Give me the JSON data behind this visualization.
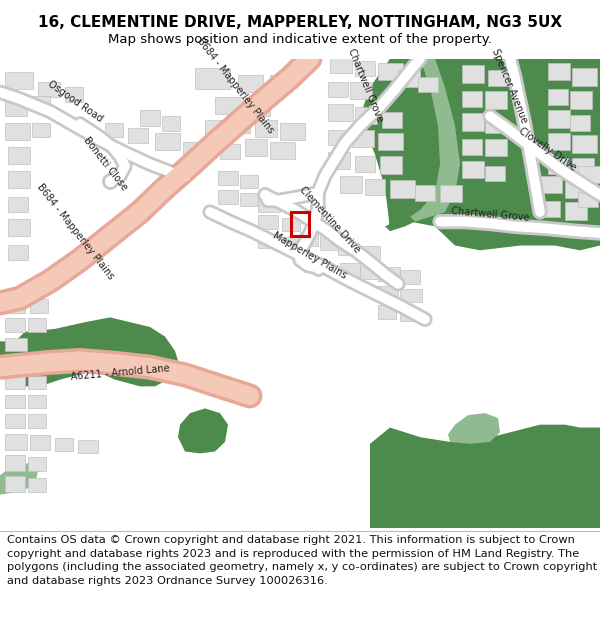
{
  "title_line1": "16, CLEMENTINE DRIVE, MAPPERLEY, NOTTINGHAM, NG3 5UX",
  "title_line2": "Map shows position and indicative extent of the property.",
  "footer_text": "Contains OS data © Crown copyright and database right 2021. This information is subject to Crown copyright and database rights 2023 and is reproduced with the permission of HM Land Registry. The polygons (including the associated geometry, namely x, y co-ordinates) are subject to Crown copyright and database rights 2023 Ordnance Survey 100026316.",
  "title_fontsize": 11,
  "subtitle_fontsize": 9.5,
  "footer_fontsize": 8.2,
  "fig_width": 6.0,
  "fig_height": 6.25,
  "map_bg": "#f7f7f7",
  "road_major_fill": "#f5c9b8",
  "road_major_outline": "#e8a898",
  "road_minor_fill": "#ffffff",
  "road_minor_outline": "#c8c8c8",
  "building_fill": "#e0e0e0",
  "building_edge": "#c0c0c0",
  "green_dark": "#4d8b4d",
  "green_light": "#90bb90",
  "property_rect_color": "#cc0000",
  "title_bg": "#ffffff",
  "footer_bg": "#ffffff"
}
